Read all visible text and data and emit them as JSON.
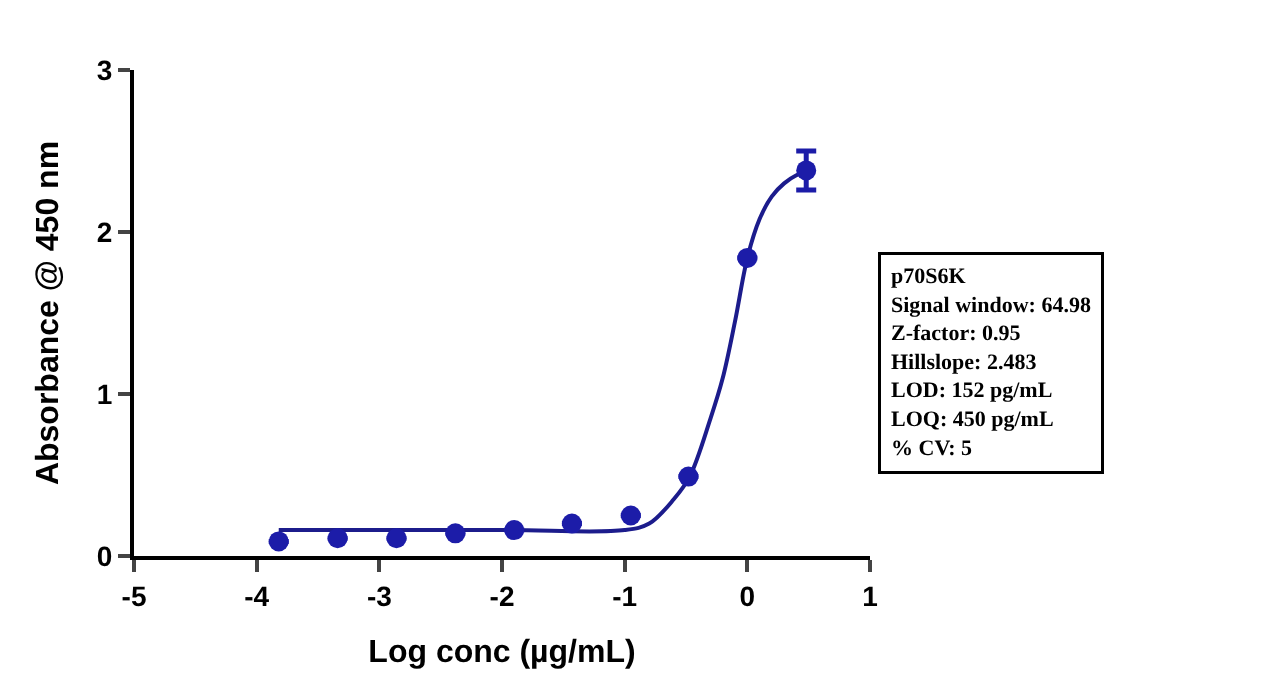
{
  "chart_data": {
    "type": "scatter",
    "xlabel": "Log conc (µg/mL)",
    "ylabel": "Absorbance @ 450 nm",
    "xlim": [
      -5,
      1
    ],
    "xticks": [
      -5,
      -4,
      -3,
      -2,
      -1,
      0,
      1
    ],
    "ylim": [
      0,
      3
    ],
    "yticks": [
      0,
      1,
      2,
      3
    ],
    "series": [
      {
        "marker": "circle",
        "color": "#1c1ca8",
        "x": [
          -3.82,
          -3.34,
          -2.86,
          -2.38,
          -1.9,
          -1.43,
          -0.95,
          -0.48,
          0,
          0.48
        ],
        "values": [
          0.09,
          0.11,
          0.11,
          0.14,
          0.16,
          0.2,
          0.25,
          0.49,
          1.84,
          2.38
        ],
        "errors": [
          null,
          null,
          null,
          null,
          null,
          null,
          null,
          null,
          null,
          0.12
        ]
      },
      {
        "type": "line",
        "marker": "none",
        "color": "#1c1c8c",
        "line_style": "solid",
        "x": [
          -3.82,
          -2,
          -1.0,
          -0.8,
          -0.6,
          -0.47,
          -0.3,
          -0.2,
          -0.1,
          0,
          0.1,
          0.2,
          0.3,
          0.4,
          0.48
        ],
        "values": [
          0.16,
          0.16,
          0.16,
          0.2,
          0.35,
          0.49,
          0.85,
          1.1,
          1.45,
          1.84,
          2.08,
          2.22,
          2.3,
          2.35,
          2.37
        ]
      }
    ],
    "annotations": [
      "p70S6K",
      "Signal window: 64.98",
      "Z-factor: 0.95",
      "Hillslope: 2.483",
      "LOD: 152 pg/mL",
      "LOQ: 450 pg/mL",
      "% CV: 5"
    ]
  }
}
